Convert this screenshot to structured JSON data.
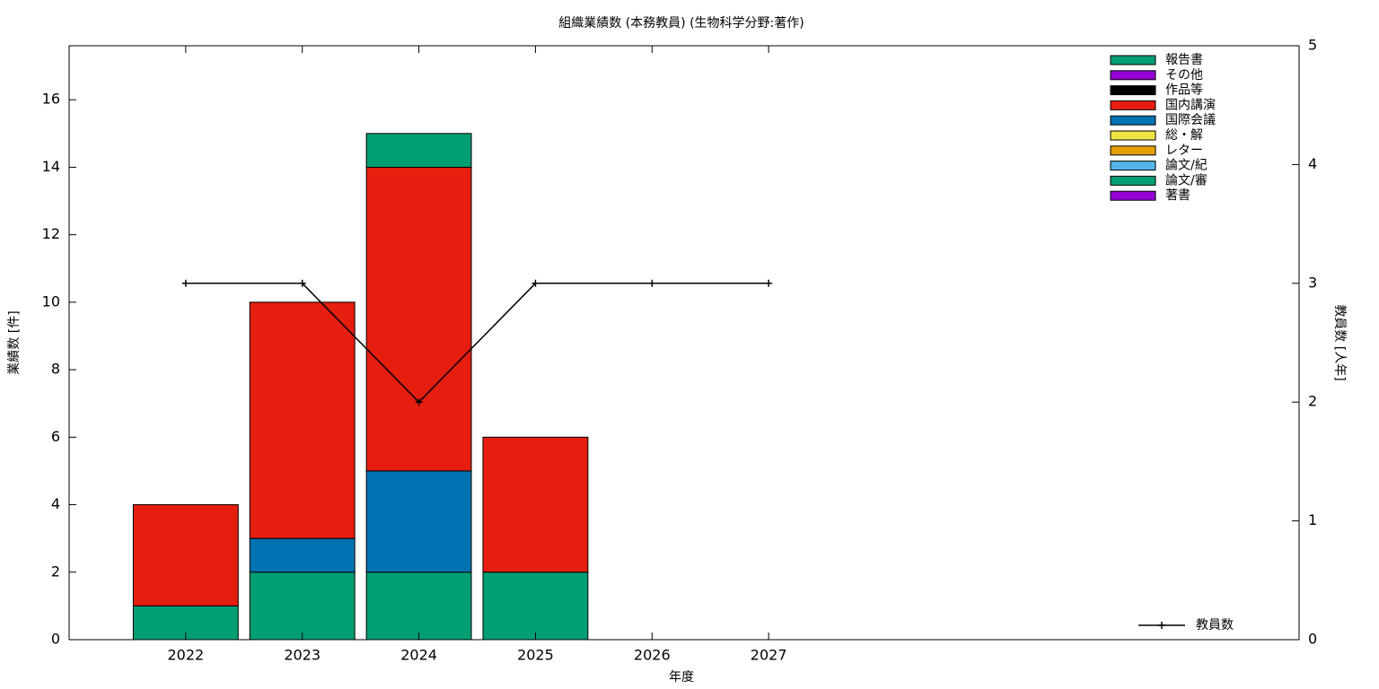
{
  "chart_data": {
    "type": "bar",
    "title": "組織業績数 (本務教員) (生物科学分野:著作)",
    "x_label": "年度",
    "y_label": "業績数 [件]",
    "y2_label": "教員数 [人年]",
    "x": [
      2022,
      2023,
      2024,
      2025,
      2026,
      2027
    ],
    "xlim": [
      2021,
      2031.55
    ],
    "xticks": [
      2022,
      2023,
      2024,
      2025,
      2026,
      2027
    ],
    "ylim": [
      0,
      17.6
    ],
    "yticks": [
      0,
      2,
      4,
      6,
      8,
      10,
      12,
      14,
      16
    ],
    "y2lim": [
      0,
      5
    ],
    "y2ticks": [
      0,
      1,
      2,
      3,
      4,
      5
    ],
    "stacked": true,
    "legend": "top-right",
    "series": [
      {
        "name": "著書",
        "color": "#9400d3",
        "values": [
          0,
          0,
          0,
          0,
          0,
          0
        ]
      },
      {
        "name": "論文/審",
        "color": "#009e73",
        "values": [
          1,
          2,
          2,
          2,
          0,
          0
        ]
      },
      {
        "name": "論文/紀",
        "color": "#56b4e9",
        "values": [
          0,
          0,
          0,
          0,
          0,
          0
        ]
      },
      {
        "name": "レター",
        "color": "#e69f00",
        "values": [
          0,
          0,
          0,
          0,
          0,
          0
        ]
      },
      {
        "name": "総・解",
        "color": "#f0e442",
        "values": [
          0,
          0,
          0,
          0,
          0,
          0
        ]
      },
      {
        "name": "国際会議",
        "color": "#0072b2",
        "values": [
          0,
          1,
          3,
          0,
          0,
          0
        ]
      },
      {
        "name": "国内講演",
        "color": "#e51e10",
        "values": [
          3,
          7,
          9,
          4,
          0,
          0
        ]
      },
      {
        "name": "作品等",
        "color": "#000000",
        "values": [
          0,
          0,
          0,
          0,
          0,
          0
        ]
      },
      {
        "name": "その他",
        "color": "#9400d3",
        "values": [
          0,
          0,
          0,
          0,
          0,
          0
        ]
      },
      {
        "name": "報告書",
        "color": "#009e73",
        "values": [
          0,
          0,
          1,
          0,
          0,
          0
        ]
      },
      {
        "name": "教員数",
        "type": "line",
        "axis": "y2",
        "color": "#000000",
        "values": [
          3,
          3,
          2,
          3,
          3,
          3
        ]
      }
    ]
  }
}
